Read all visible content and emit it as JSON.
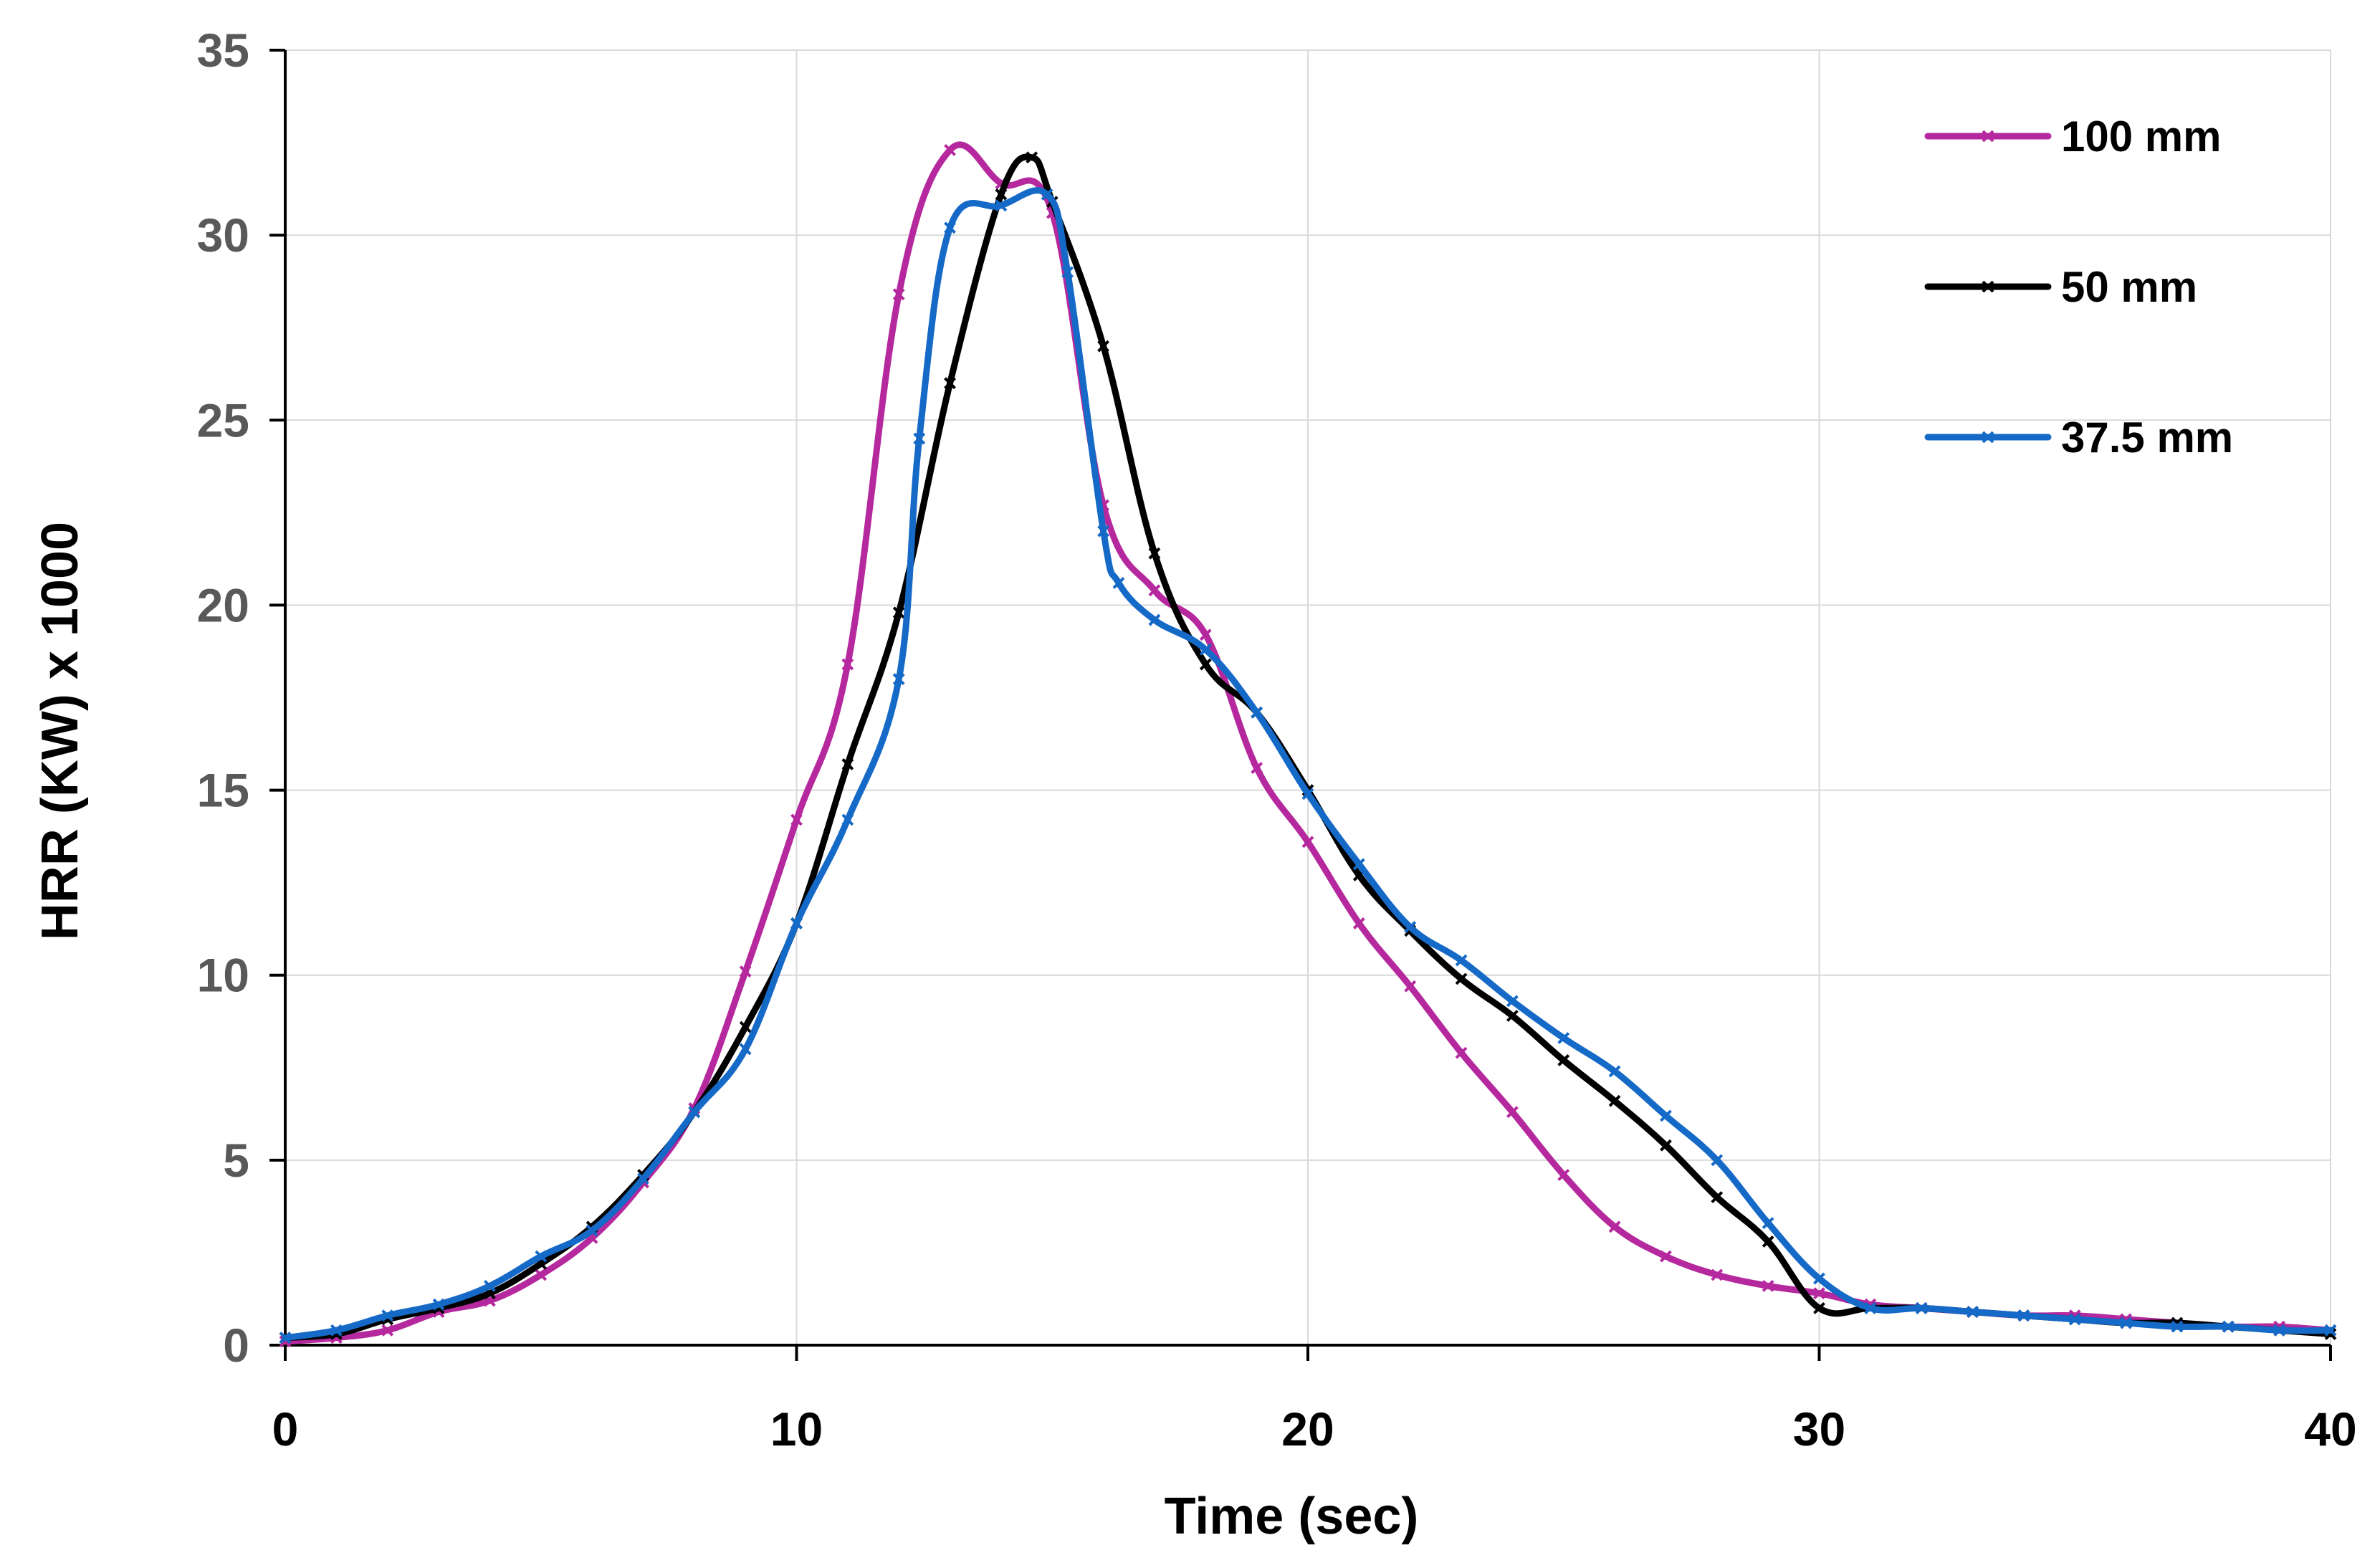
{
  "chart_data": {
    "type": "line",
    "title": "",
    "xlabel": "Time (sec)",
    "ylabel": "HRR (KW) x 1000",
    "xlim": [
      0,
      40
    ],
    "ylim": [
      0,
      35
    ],
    "x_ticks": [
      0,
      10,
      20,
      30,
      40
    ],
    "y_ticks": [
      0,
      5,
      10,
      15,
      20,
      25,
      30,
      35
    ],
    "grid": true,
    "legend_position": "top-right",
    "series": [
      {
        "name": "100 mm",
        "color": "#b5289e",
        "x": [
          0,
          1,
          2,
          3,
          4,
          5,
          6,
          7,
          8,
          9,
          10,
          11,
          12,
          13,
          14,
          15,
          16,
          17,
          18,
          19,
          20,
          21,
          22,
          23,
          24,
          25,
          26,
          27,
          28,
          29,
          30,
          31,
          32,
          33,
          34,
          35,
          36,
          37,
          38,
          39,
          40
        ],
        "y": [
          0.1,
          0.2,
          0.4,
          0.9,
          1.2,
          1.9,
          2.9,
          4.4,
          6.4,
          10.1,
          14.2,
          18.4,
          28.4,
          32.3,
          31.4,
          30.6,
          22.7,
          20.4,
          19.2,
          15.6,
          13.6,
          11.4,
          9.7,
          7.9,
          6.3,
          4.6,
          3.2,
          2.4,
          1.9,
          1.6,
          1.4,
          1.1,
          1.0,
          0.9,
          0.8,
          0.8,
          0.7,
          0.6,
          0.5,
          0.5,
          0.4
        ]
      },
      {
        "name": "50 mm",
        "color": "#000000",
        "x": [
          0,
          1,
          2,
          3,
          4,
          5,
          6,
          7,
          8,
          9,
          10,
          11,
          12,
          13,
          14,
          14.6,
          15,
          16,
          17,
          18,
          19,
          20,
          21,
          22,
          23,
          24,
          25,
          26,
          27,
          28,
          29,
          30,
          31,
          32,
          33,
          34,
          35,
          36,
          37,
          38,
          39,
          40
        ],
        "y": [
          0.2,
          0.3,
          0.7,
          1.0,
          1.4,
          2.2,
          3.2,
          4.6,
          6.3,
          8.6,
          11.4,
          15.7,
          19.8,
          26.0,
          31.1,
          32.1,
          30.9,
          27.0,
          21.4,
          18.4,
          17.1,
          15.0,
          12.7,
          11.2,
          9.9,
          8.9,
          7.7,
          6.6,
          5.4,
          4.0,
          2.8,
          1.0,
          1.0,
          1.0,
          0.9,
          0.8,
          0.7,
          0.6,
          0.6,
          0.5,
          0.4,
          0.3
        ]
      },
      {
        "name": "37.5 mm",
        "color": "#1569c7",
        "x": [
          0,
          1,
          2,
          3,
          4,
          5,
          6,
          7,
          8,
          9,
          10,
          11,
          12,
          12.4,
          13,
          14,
          14.9,
          15.3,
          16,
          16.3,
          17,
          18,
          19,
          20,
          21,
          22,
          23,
          24,
          25,
          26,
          27,
          28,
          29,
          30,
          31,
          32,
          33,
          34,
          35,
          36,
          37,
          38,
          39,
          40
        ],
        "y": [
          0.2,
          0.4,
          0.8,
          1.1,
          1.6,
          2.4,
          3.1,
          4.5,
          6.3,
          8.0,
          11.4,
          14.2,
          18.0,
          24.5,
          30.2,
          30.8,
          31.1,
          29.0,
          22.0,
          20.6,
          19.6,
          18.8,
          17.1,
          14.9,
          13.0,
          11.3,
          10.4,
          9.3,
          8.3,
          7.4,
          6.2,
          5.0,
          3.3,
          1.8,
          1.0,
          1.0,
          0.9,
          0.8,
          0.7,
          0.6,
          0.5,
          0.5,
          0.4,
          0.4
        ]
      }
    ]
  }
}
